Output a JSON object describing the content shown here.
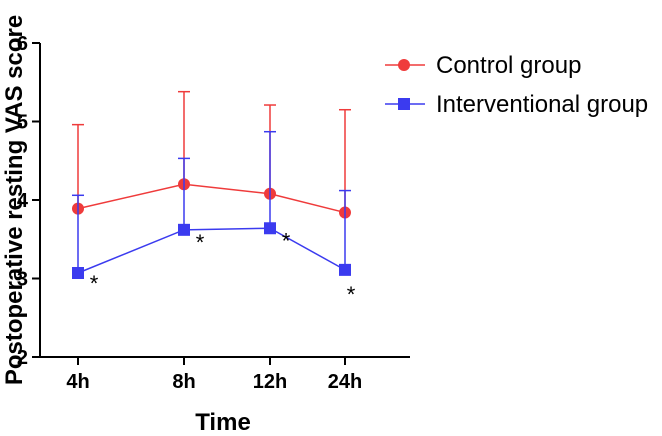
{
  "chart_data": {
    "type": "line",
    "title": "",
    "xlabel": "Time",
    "ylabel": "Postoperative resting VAS score",
    "categories": [
      "4h",
      "8h",
      "12h",
      "24h"
    ],
    "ylim": [
      2,
      6
    ],
    "yticks": [
      "2",
      "3",
      "4",
      "5",
      "6"
    ],
    "grid": false,
    "legend_position": "top-right",
    "series": [
      {
        "name": "Control group",
        "color": "#ef3b3b",
        "marker": "circle",
        "error_direction": "up",
        "values": [
          3.89,
          4.2,
          4.08,
          3.84
        ],
        "errors": [
          1.07,
          1.18,
          1.13,
          1.31
        ]
      },
      {
        "name": "Interventional group",
        "color": "#3b3bef",
        "marker": "square",
        "error_direction": "up",
        "values": [
          3.07,
          3.62,
          3.64,
          3.11
        ],
        "errors": [
          0.99,
          0.91,
          1.23,
          1.01
        ]
      }
    ],
    "annotations": [
      {
        "category": "4h",
        "text": "*",
        "value": 3.07
      },
      {
        "category": "8h",
        "text": "*",
        "value": 3.62
      },
      {
        "category": "12h",
        "text": "*",
        "value": 3.64
      },
      {
        "category": "24h",
        "text": "*",
        "value": 3.11
      }
    ]
  }
}
